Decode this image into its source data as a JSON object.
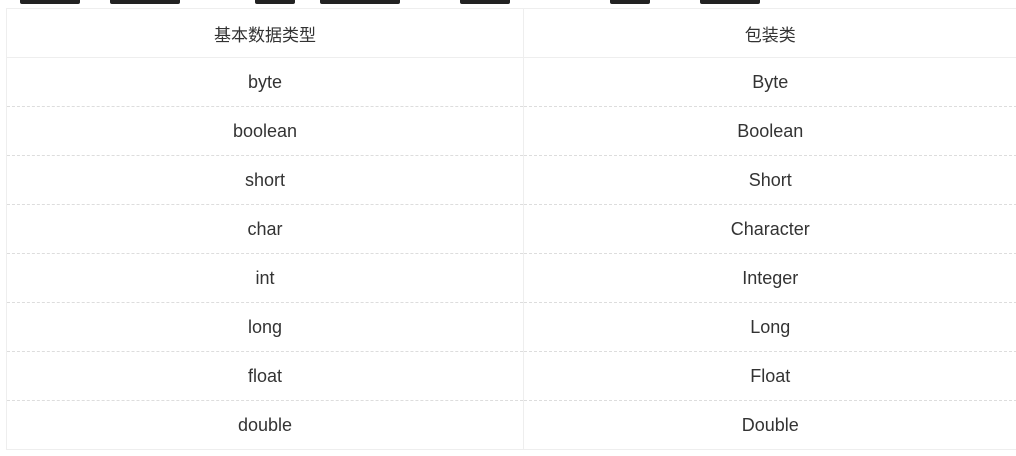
{
  "table": {
    "headers": [
      "基本数据类型",
      "包装类"
    ],
    "rows": [
      [
        "byte",
        "Byte"
      ],
      [
        "boolean",
        "Boolean"
      ],
      [
        "short",
        "Short"
      ],
      [
        "char",
        "Character"
      ],
      [
        "int",
        "Integer"
      ],
      [
        "long",
        "Long"
      ],
      [
        "float",
        "Float"
      ],
      [
        "double",
        "Double"
      ]
    ]
  }
}
